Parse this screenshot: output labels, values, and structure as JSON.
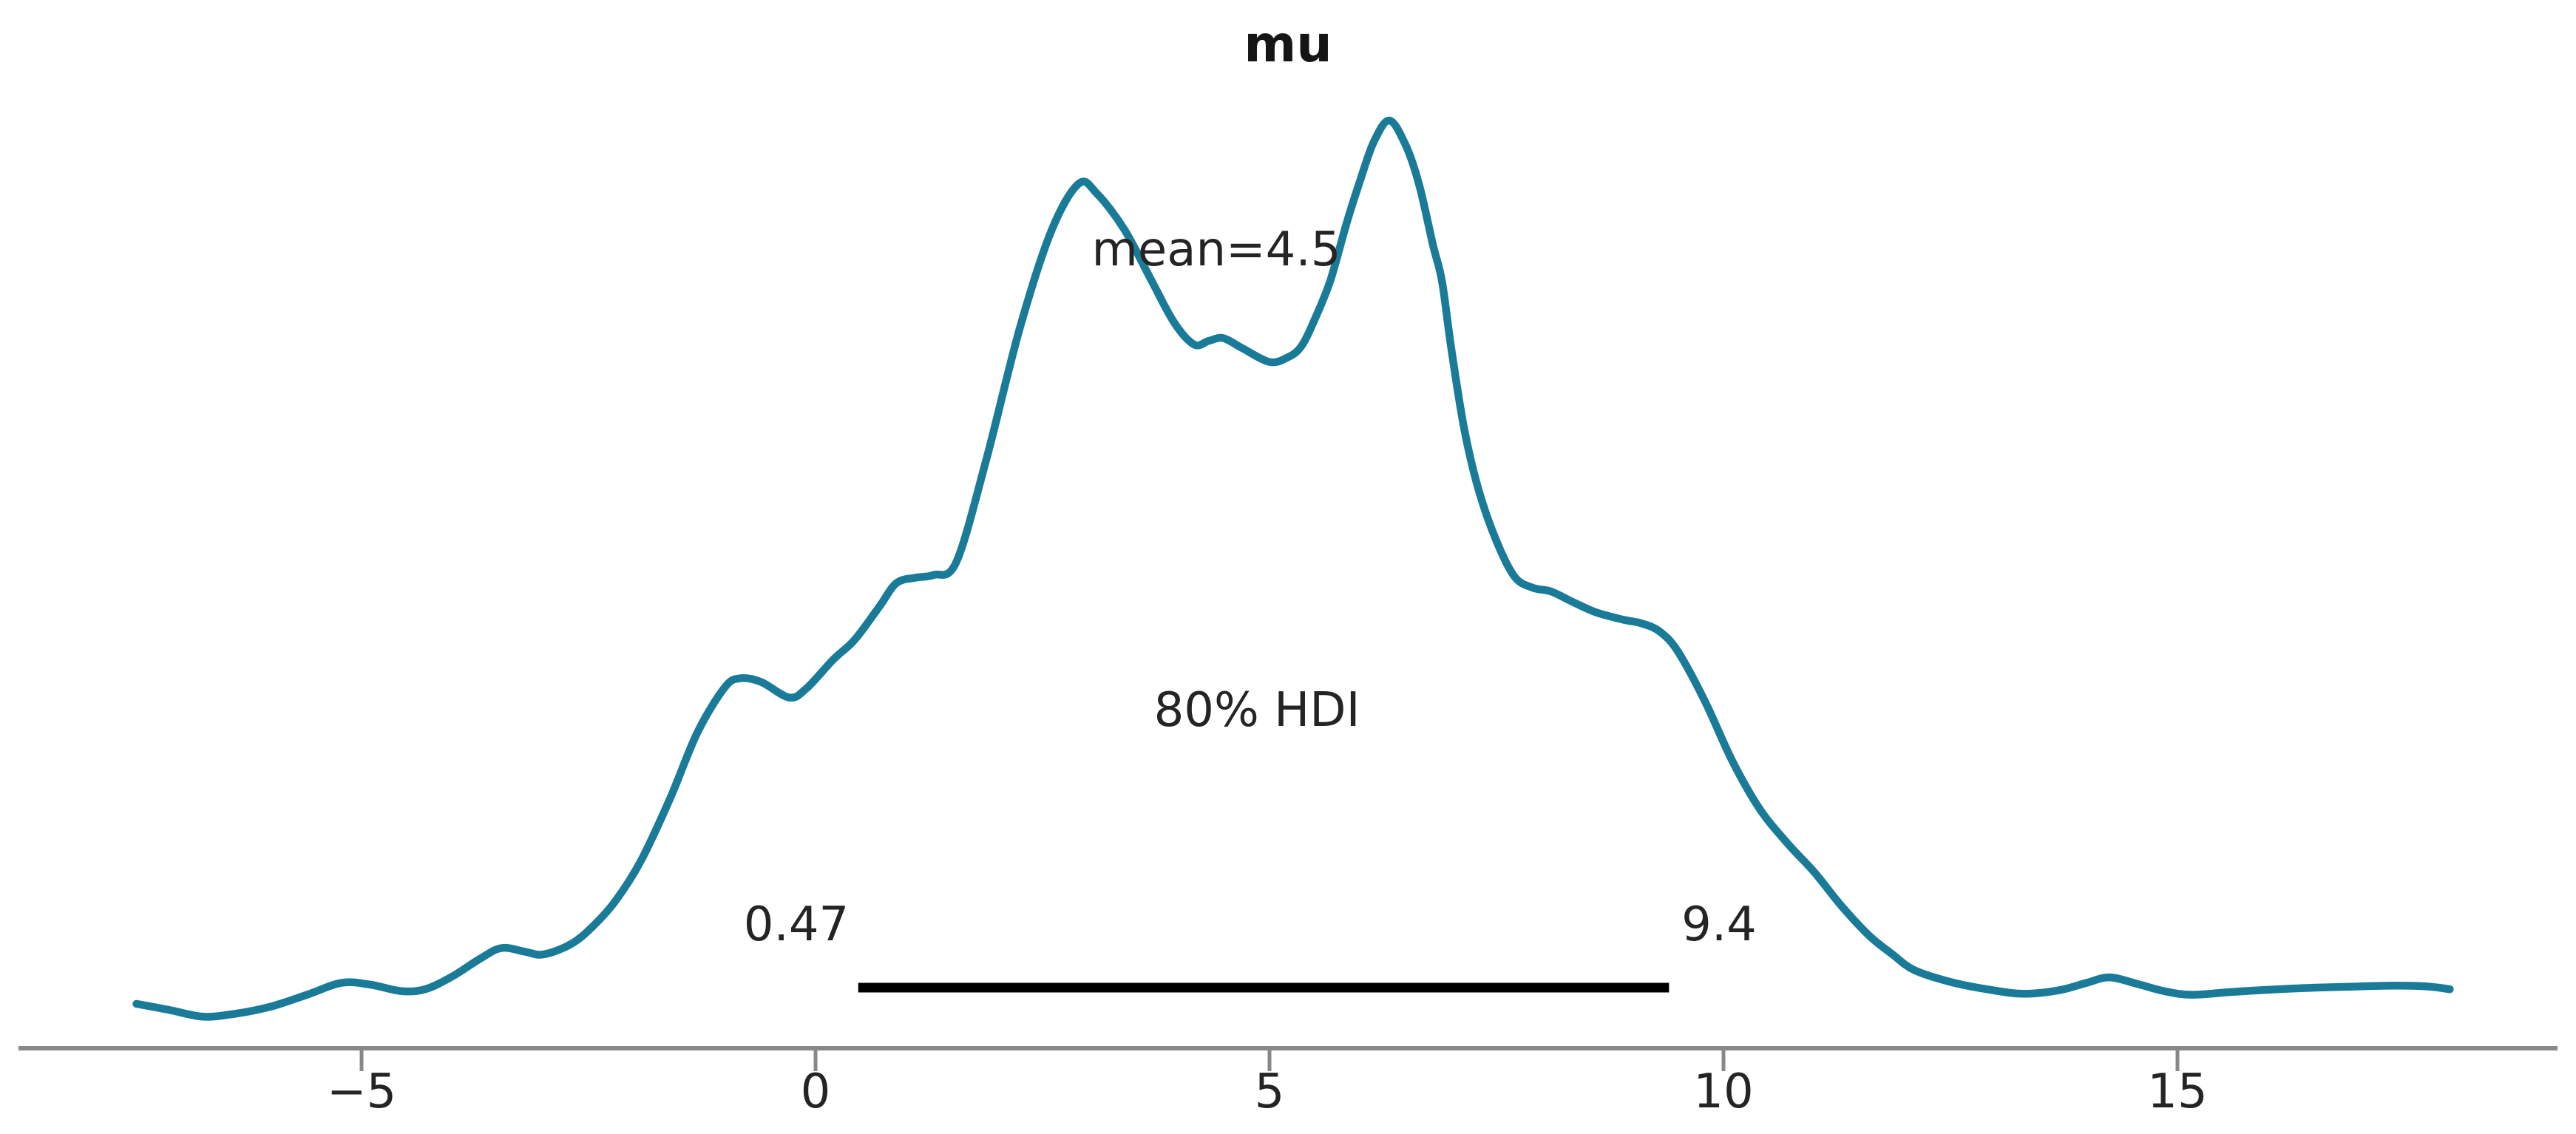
{
  "chart": {
    "title": "mu",
    "mean_label": "mean=4.5",
    "hdi_label": "80% HDI",
    "hdi_lower": "0.47",
    "hdi_upper": "9.4",
    "x_tick_labels": [
      "−5",
      "0",
      "5",
      "10",
      "15"
    ]
  },
  "colors": {
    "curve": "#1a7b99",
    "hdi_bar": "#000000",
    "axis": "#888888",
    "text": "#242424"
  },
  "chart_data": {
    "type": "line",
    "subtype": "kde-posterior-density",
    "title": "mu",
    "xlabel": "",
    "ylabel": "",
    "x_range": [
      -7.5,
      18
    ],
    "x_ticks": [
      -5,
      0,
      5,
      10,
      15
    ],
    "grid": false,
    "legend": false,
    "mean": 4.5,
    "hdi_prob": 0.8,
    "hdi": [
      0.47,
      9.4
    ],
    "density_normalized": true,
    "points": [
      [
        -7.48,
        0.034
      ],
      [
        -7.1,
        0.027
      ],
      [
        -6.75,
        0.02
      ],
      [
        -6.4,
        0.023
      ],
      [
        -6.0,
        0.031
      ],
      [
        -5.6,
        0.044
      ],
      [
        -5.22,
        0.057
      ],
      [
        -4.9,
        0.055
      ],
      [
        -4.57,
        0.048
      ],
      [
        -4.3,
        0.05
      ],
      [
        -4.0,
        0.064
      ],
      [
        -3.7,
        0.083
      ],
      [
        -3.46,
        0.095
      ],
      [
        -3.2,
        0.091
      ],
      [
        -3.0,
        0.088
      ],
      [
        -2.7,
        0.099
      ],
      [
        -2.46,
        0.118
      ],
      [
        -2.2,
        0.147
      ],
      [
        -1.92,
        0.191
      ],
      [
        -1.6,
        0.259
      ],
      [
        -1.3,
        0.331
      ],
      [
        -1.0,
        0.38
      ],
      [
        -0.83,
        0.39
      ],
      [
        -0.6,
        0.386
      ],
      [
        -0.29,
        0.369
      ],
      [
        -0.1,
        0.379
      ],
      [
        0.2,
        0.411
      ],
      [
        0.43,
        0.432
      ],
      [
        0.7,
        0.468
      ],
      [
        0.89,
        0.494
      ],
      [
        1.1,
        0.5
      ],
      [
        1.3,
        0.503
      ],
      [
        1.55,
        0.517
      ],
      [
        1.88,
        0.629
      ],
      [
        2.25,
        0.773
      ],
      [
        2.6,
        0.88
      ],
      [
        2.9,
        0.931
      ],
      [
        3.1,
        0.92
      ],
      [
        3.4,
        0.881
      ],
      [
        3.7,
        0.825
      ],
      [
        3.95,
        0.779
      ],
      [
        4.17,
        0.755
      ],
      [
        4.33,
        0.759
      ],
      [
        4.49,
        0.762
      ],
      [
        4.7,
        0.751
      ],
      [
        5.0,
        0.736
      ],
      [
        5.2,
        0.741
      ],
      [
        5.35,
        0.753
      ],
      [
        5.5,
        0.783
      ],
      [
        5.67,
        0.825
      ],
      [
        5.85,
        0.888
      ],
      [
        6.0,
        0.935
      ],
      [
        6.15,
        0.977
      ],
      [
        6.32,
        1.0
      ],
      [
        6.5,
        0.973
      ],
      [
        6.65,
        0.929
      ],
      [
        6.8,
        0.864
      ],
      [
        6.9,
        0.824
      ],
      [
        7.0,
        0.752
      ],
      [
        7.14,
        0.665
      ],
      [
        7.3,
        0.597
      ],
      [
        7.5,
        0.54
      ],
      [
        7.7,
        0.501
      ],
      [
        7.9,
        0.489
      ],
      [
        8.1,
        0.485
      ],
      [
        8.35,
        0.473
      ],
      [
        8.6,
        0.462
      ],
      [
        8.9,
        0.454
      ],
      [
        9.1,
        0.45
      ],
      [
        9.3,
        0.441
      ],
      [
        9.5,
        0.419
      ],
      [
        9.8,
        0.364
      ],
      [
        10.1,
        0.299
      ],
      [
        10.4,
        0.247
      ],
      [
        10.7,
        0.21
      ],
      [
        11.0,
        0.178
      ],
      [
        11.3,
        0.141
      ],
      [
        11.6,
        0.109
      ],
      [
        11.85,
        0.089
      ],
      [
        12.1,
        0.071
      ],
      [
        12.5,
        0.058
      ],
      [
        12.9,
        0.05
      ],
      [
        13.3,
        0.045
      ],
      [
        13.7,
        0.049
      ],
      [
        14.0,
        0.057
      ],
      [
        14.25,
        0.063
      ],
      [
        14.55,
        0.056
      ],
      [
        14.85,
        0.048
      ],
      [
        15.15,
        0.044
      ],
      [
        15.6,
        0.047
      ],
      [
        16.1,
        0.05
      ],
      [
        16.6,
        0.052
      ],
      [
        17.0,
        0.053
      ],
      [
        17.4,
        0.054
      ],
      [
        17.75,
        0.053
      ],
      [
        18.0,
        0.05
      ]
    ]
  }
}
